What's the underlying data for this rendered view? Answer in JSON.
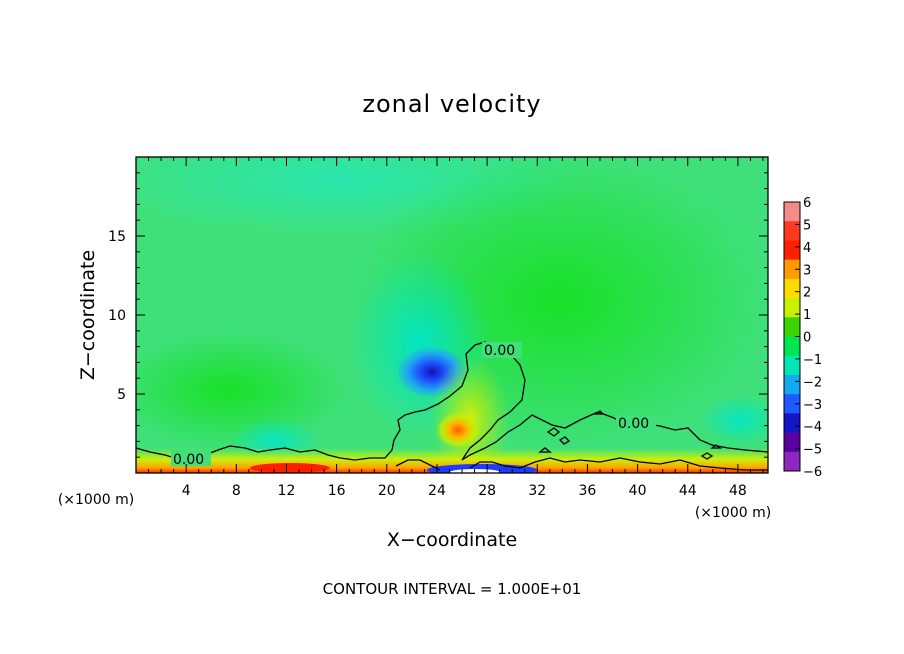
{
  "chart_data": {
    "type": "heatmap",
    "title": "zonal velocity",
    "xlabel": "X−coordinate",
    "ylabel": "Z−coordinate",
    "x_unit_left": "(×1000 m)",
    "x_unit_right": "(×1000 m)",
    "xlim": [
      0,
      50.4
    ],
    "ylim": [
      0,
      20
    ],
    "xticks": [
      "4",
      "8",
      "12",
      "16",
      "20",
      "24",
      "28",
      "32",
      "36",
      "40",
      "44",
      "48"
    ],
    "xtick_values": [
      4,
      8,
      12,
      16,
      20,
      24,
      28,
      32,
      36,
      40,
      44,
      48
    ],
    "yticks": [
      "5",
      "10",
      "15"
    ],
    "ytick_values": [
      5,
      10,
      15
    ],
    "colorbar": {
      "labels": [
        "6",
        "5",
        "4",
        "3",
        "2",
        "1",
        "0",
        "−1",
        "−2",
        "−3",
        "−4",
        "−5",
        "−6"
      ],
      "levels": [
        6,
        5,
        4,
        3,
        2,
        1,
        0,
        -1,
        -2,
        -3,
        -4,
        -5,
        -6
      ],
      "colors": [
        "#f48a8a",
        "#ff3a20",
        "#ff2000",
        "#ff9a00",
        "#ffdc00",
        "#c8f000",
        "#3cd200",
        "#00e650",
        "#00e6b4",
        "#14aaf0",
        "#1e5aff",
        "#1414c8",
        "#5a00a0",
        "#8c28be"
      ]
    },
    "contours": [
      {
        "label": "0.00",
        "x": 26.9,
        "z": 7.8
      },
      {
        "label": "0.00",
        "x": 39.3,
        "z": 3.2
      },
      {
        "label": "0.00",
        "x": 4.0,
        "z": 0.9
      }
    ],
    "field_features": [
      {
        "kind": "min",
        "x": 23.2,
        "z": 6.3,
        "value": -4
      },
      {
        "kind": "max",
        "x": 25.8,
        "z": 2.7,
        "value": 3
      },
      {
        "kind": "min",
        "x": 27.3,
        "z": 0.2,
        "value": -4
      },
      {
        "kind": "max",
        "x": 10.5,
        "z": 0.3,
        "value": 4
      }
    ],
    "footer": "CONTOUR INTERVAL = 1.000E+01"
  }
}
